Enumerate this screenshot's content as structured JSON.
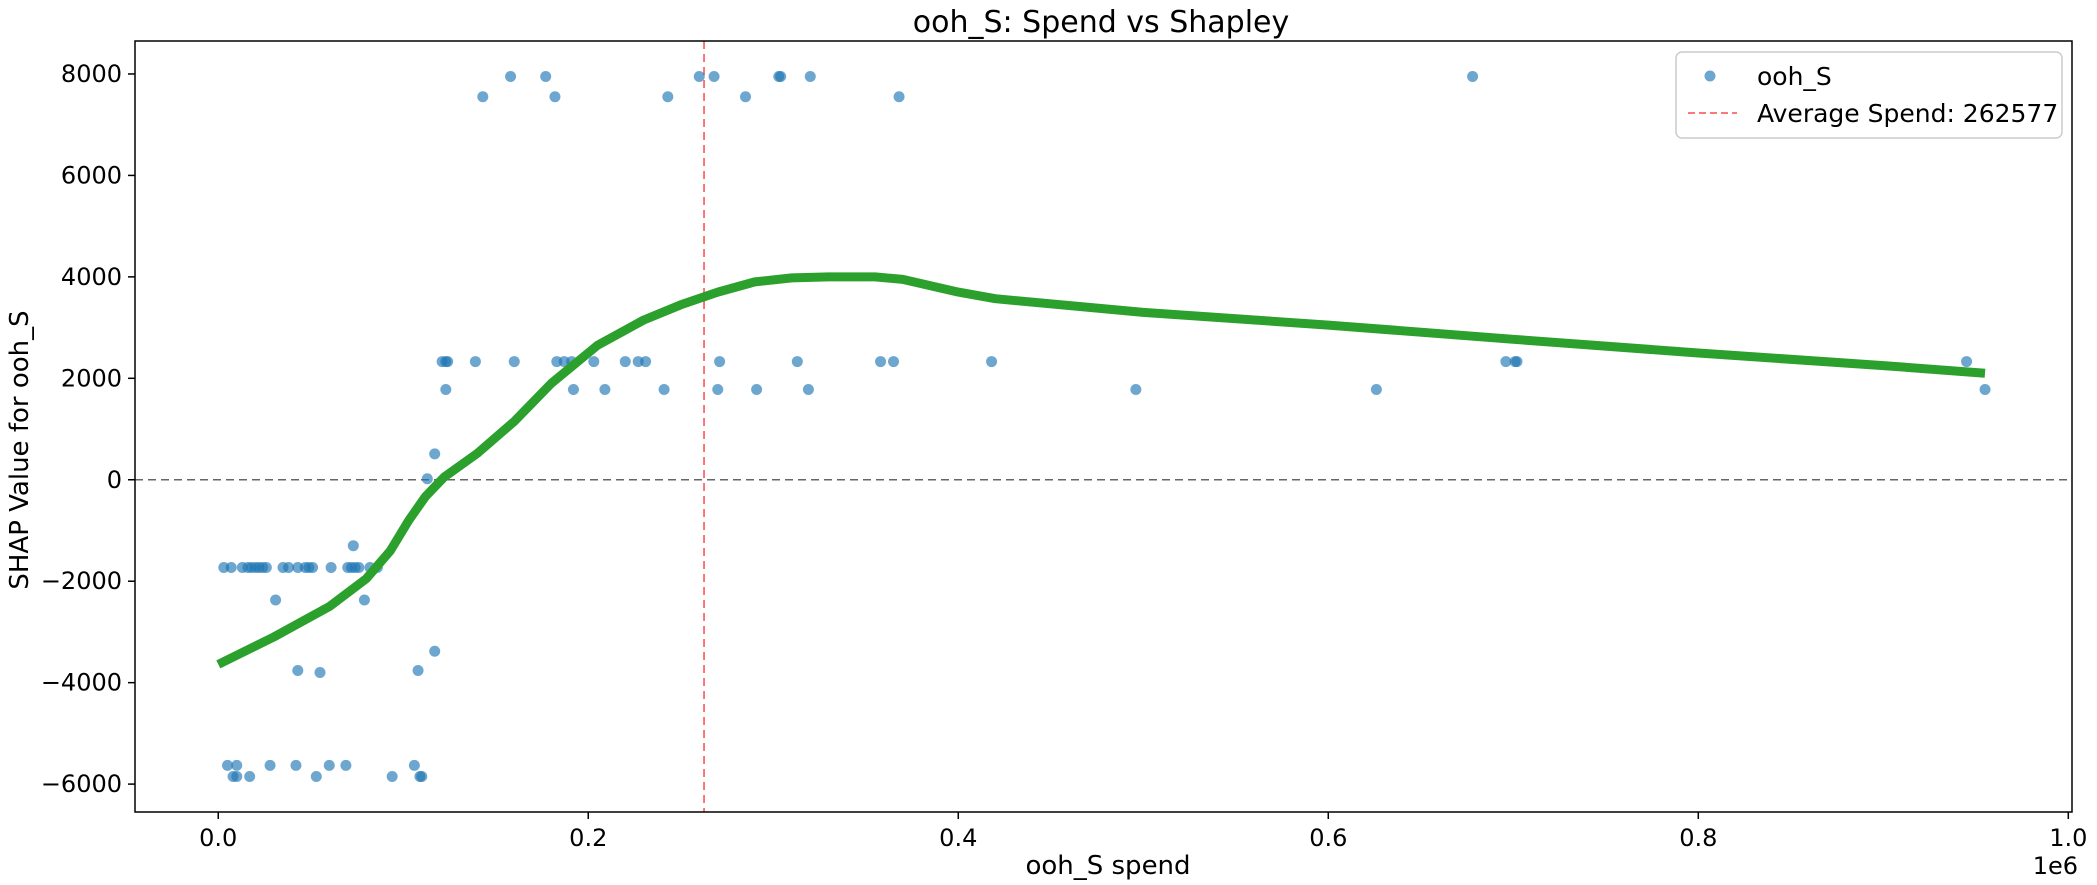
{
  "chart_data": {
    "type": "scatter",
    "title": "ooh_S: Spend vs Shapley",
    "xlabel": "ooh_S spend",
    "ylabel": "SHAP Value for ooh_S",
    "x_offset_label": "1e6",
    "xlim": [
      -0.045,
      1.002
    ],
    "ylim": [
      -6550,
      8650
    ],
    "x_ticks": [
      0.0,
      0.2,
      0.4,
      0.6,
      0.8,
      1.0
    ],
    "x_tick_labels": [
      "0.0",
      "0.2",
      "0.4",
      "0.6",
      "0.8",
      "1.0"
    ],
    "y_ticks": [
      -6000,
      -4000,
      -2000,
      0,
      2000,
      4000,
      6000,
      8000
    ],
    "y_tick_labels": [
      "−6000",
      "−4000",
      "−2000",
      "0",
      "2000",
      "4000",
      "6000",
      "8000"
    ],
    "legend_position": "upper-right",
    "zero_line": {
      "y": 0,
      "color": "#666666",
      "style": "dashed"
    },
    "average_line": {
      "x": 0.262577,
      "label": "Average Spend: 262577",
      "color": "#ff6666",
      "style": "dashed"
    },
    "series": [
      {
        "name": "ooh_S",
        "kind": "scatter",
        "color": "#1f77b4",
        "points": [
          [
            0.003,
            -1730
          ],
          [
            0.007,
            -1730
          ],
          [
            0.013,
            -1730
          ],
          [
            0.016,
            -1730
          ],
          [
            0.018,
            -1730
          ],
          [
            0.02,
            -1730
          ],
          [
            0.022,
            -1730
          ],
          [
            0.024,
            -1730
          ],
          [
            0.026,
            -1730
          ],
          [
            0.035,
            -1730
          ],
          [
            0.038,
            -1730
          ],
          [
            0.043,
            -1730
          ],
          [
            0.047,
            -1730
          ],
          [
            0.049,
            -1730
          ],
          [
            0.051,
            -1730
          ],
          [
            0.061,
            -1730
          ],
          [
            0.07,
            -1730
          ],
          [
            0.072,
            -1730
          ],
          [
            0.074,
            -1730
          ],
          [
            0.076,
            -1730
          ],
          [
            0.082,
            -1730
          ],
          [
            0.086,
            -1730
          ],
          [
            0.073,
            -1300
          ],
          [
            0.031,
            -2370
          ],
          [
            0.079,
            -2370
          ],
          [
            0.043,
            -3760
          ],
          [
            0.055,
            -3800
          ],
          [
            0.108,
            -3760
          ],
          [
            0.117,
            -3380
          ],
          [
            0.005,
            -5630
          ],
          [
            0.01,
            -5630
          ],
          [
            0.028,
            -5630
          ],
          [
            0.042,
            -5630
          ],
          [
            0.06,
            -5630
          ],
          [
            0.069,
            -5630
          ],
          [
            0.106,
            -5630
          ],
          [
            0.008,
            -5850
          ],
          [
            0.01,
            -5850
          ],
          [
            0.017,
            -5850
          ],
          [
            0.053,
            -5850
          ],
          [
            0.094,
            -5850
          ],
          [
            0.109,
            -5850
          ],
          [
            0.11,
            -5850
          ],
          [
            0.113,
            20
          ],
          [
            0.117,
            510
          ],
          [
            0.121,
            2330
          ],
          [
            0.123,
            2330
          ],
          [
            0.124,
            2330
          ],
          [
            0.139,
            2330
          ],
          [
            0.16,
            2330
          ],
          [
            0.183,
            2330
          ],
          [
            0.187,
            2330
          ],
          [
            0.191,
            2330
          ],
          [
            0.203,
            2330
          ],
          [
            0.22,
            2330
          ],
          [
            0.227,
            2330
          ],
          [
            0.231,
            2330
          ],
          [
            0.271,
            2330
          ],
          [
            0.313,
            2330
          ],
          [
            0.358,
            2330
          ],
          [
            0.365,
            2330
          ],
          [
            0.418,
            2330
          ],
          [
            0.696,
            2330
          ],
          [
            0.701,
            2330
          ],
          [
            0.702,
            2330
          ],
          [
            0.945,
            2330
          ],
          [
            0.123,
            1780
          ],
          [
            0.192,
            1780
          ],
          [
            0.209,
            1780
          ],
          [
            0.241,
            1780
          ],
          [
            0.27,
            1780
          ],
          [
            0.291,
            1780
          ],
          [
            0.319,
            1780
          ],
          [
            0.496,
            1780
          ],
          [
            0.626,
            1780
          ],
          [
            0.955,
            1780
          ],
          [
            0.143,
            7550
          ],
          [
            0.158,
            7950
          ],
          [
            0.177,
            7950
          ],
          [
            0.182,
            7550
          ],
          [
            0.243,
            7550
          ],
          [
            0.26,
            7950
          ],
          [
            0.268,
            7950
          ],
          [
            0.285,
            7550
          ],
          [
            0.303,
            7950
          ],
          [
            0.304,
            7950
          ],
          [
            0.32,
            7950
          ],
          [
            0.368,
            7550
          ],
          [
            0.678,
            7950
          ]
        ]
      },
      {
        "name": "",
        "kind": "line",
        "color": "#2ca02c",
        "points": [
          [
            0.0,
            -3640
          ],
          [
            0.03,
            -3100
          ],
          [
            0.06,
            -2500
          ],
          [
            0.08,
            -1950
          ],
          [
            0.093,
            -1400
          ],
          [
            0.103,
            -800
          ],
          [
            0.112,
            -330
          ],
          [
            0.122,
            50
          ],
          [
            0.14,
            520
          ],
          [
            0.16,
            1150
          ],
          [
            0.18,
            1900
          ],
          [
            0.205,
            2650
          ],
          [
            0.23,
            3150
          ],
          [
            0.25,
            3450
          ],
          [
            0.27,
            3700
          ],
          [
            0.29,
            3900
          ],
          [
            0.31,
            3980
          ],
          [
            0.33,
            4000
          ],
          [
            0.355,
            4000
          ],
          [
            0.37,
            3950
          ],
          [
            0.4,
            3700
          ],
          [
            0.42,
            3570
          ],
          [
            0.5,
            3300
          ],
          [
            0.6,
            3050
          ],
          [
            0.7,
            2770
          ],
          [
            0.8,
            2500
          ],
          [
            0.9,
            2250
          ],
          [
            0.955,
            2100
          ]
        ]
      }
    ]
  }
}
